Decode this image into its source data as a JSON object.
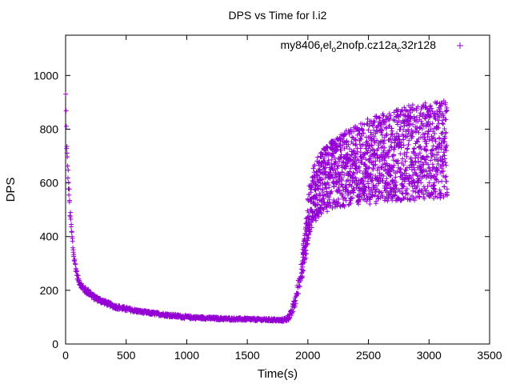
{
  "chart_data": {
    "type": "scatter",
    "title": "DPS vs Time for l.i2",
    "xlabel": "Time(s)",
    "ylabel": "DPS",
    "xlim": [
      0,
      3500
    ],
    "ylim": [
      0,
      1150
    ],
    "x_ticks": [
      "0",
      "500",
      "1000",
      "1500",
      "2000",
      "2500",
      "3000",
      "3500"
    ],
    "y_ticks": [
      "0",
      "200",
      "400",
      "600",
      "800",
      "1000"
    ],
    "grid": false,
    "legend_position": "top-right",
    "marker": "+",
    "color": "#9400d3",
    "series": [
      {
        "name_parts": [
          "my8406",
          "r",
          "el",
          "o",
          "2nofp.cz12a",
          "c",
          "32r128"
        ],
        "x": [
          0,
          5,
          10,
          20,
          30,
          40,
          50,
          60,
          70,
          80,
          90,
          100,
          120,
          140,
          160,
          180,
          200,
          230,
          260,
          300,
          350,
          400,
          450,
          500,
          600,
          700,
          800,
          900,
          1000,
          1100,
          1200,
          1300,
          1400,
          1500,
          1600,
          1700,
          1780,
          1820,
          1860,
          1900,
          1940,
          1980,
          2010,
          2050,
          2100,
          2200,
          2300,
          2400,
          2500,
          2600,
          2700,
          2800,
          2900,
          3000,
          3100,
          3150
        ],
        "y": [
          930,
          780,
          700,
          620,
          540,
          460,
          410,
          360,
          320,
          290,
          265,
          245,
          225,
          210,
          200,
          195,
          190,
          175,
          168,
          160,
          150,
          140,
          135,
          130,
          122,
          115,
          110,
          105,
          100,
          98,
          96,
          94,
          93,
          92,
          91,
          90,
          88,
          92,
          110,
          170,
          260,
          380,
          500,
          560,
          600,
          630,
          650,
          670,
          680,
          690,
          700,
          710,
          715,
          720,
          725,
          730
        ],
        "spread": [
          0,
          40,
          40,
          35,
          30,
          28,
          24,
          20,
          18,
          16,
          14,
          14,
          12,
          12,
          12,
          12,
          12,
          10,
          10,
          10,
          8,
          8,
          8,
          8,
          6,
          6,
          6,
          6,
          6,
          5,
          5,
          5,
          5,
          5,
          5,
          5,
          5,
          8,
          15,
          25,
          40,
          70,
          90,
          110,
          120,
          130,
          140,
          150,
          160,
          165,
          170,
          175,
          180,
          180,
          185,
          185
        ]
      }
    ]
  }
}
